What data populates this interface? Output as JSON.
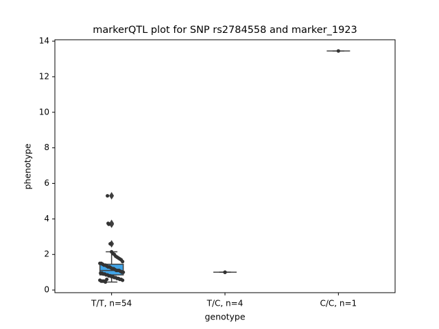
{
  "chart_data": {
    "type": "box",
    "title": "markerQTL plot for SNP rs2784558 and marker_1923",
    "xlabel": "genotype",
    "ylabel": "phenotype",
    "categories": [
      "T/T, n=54",
      "T/C, n=4",
      "C/C, n=1"
    ],
    "ylim": [
      -0.15,
      14.08
    ],
    "yticks": [
      0,
      2,
      4,
      6,
      8,
      10,
      12,
      14
    ],
    "box_color": "#42a5e8",
    "edge_color": "#3f3f3f",
    "point_color": "#333333",
    "boxes": [
      {
        "whislo": 0.45,
        "q1": 0.85,
        "median": 1.1,
        "q3": 1.45,
        "whishi": 2.15,
        "fliers": [
          2.6,
          3.7,
          3.75,
          5.3
        ]
      },
      {
        "whislo": 1.0,
        "q1": 1.0,
        "median": 1.0,
        "q3": 1.0,
        "whishi": 1.0,
        "fliers": []
      },
      {
        "whislo": 13.45,
        "q1": 13.45,
        "median": 13.45,
        "q3": 13.45,
        "whishi": 13.45,
        "fliers": []
      }
    ],
    "points": [
      [
        5.3,
        3.7,
        2.6,
        2.15,
        2.05,
        2.0,
        1.9,
        1.85,
        1.8,
        1.75,
        1.7,
        1.6,
        1.5,
        1.5,
        1.45,
        1.4,
        1.4,
        1.35,
        1.3,
        1.3,
        1.25,
        1.2,
        1.2,
        1.15,
        1.1,
        1.1,
        1.1,
        1.05,
        1.0,
        1.0,
        0.95,
        0.95,
        0.9,
        0.9,
        0.85,
        0.85,
        0.8,
        0.8,
        0.75,
        0.75,
        0.7,
        0.7,
        0.65,
        0.65,
        0.6,
        0.6,
        0.55,
        0.55,
        0.5,
        0.5,
        0.5,
        0.45,
        0.6,
        3.75
      ],
      [
        1.0,
        1.0,
        1.0,
        1.0
      ],
      [
        13.45
      ]
    ]
  }
}
